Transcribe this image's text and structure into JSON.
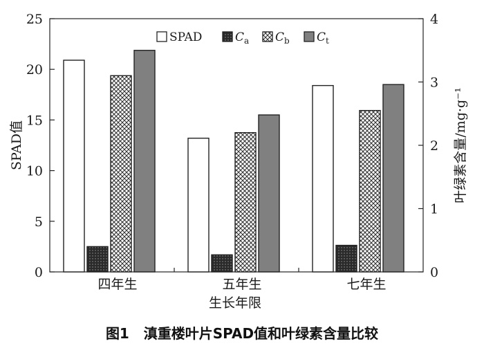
{
  "chart_data": {
    "type": "bar",
    "categories": [
      "四年生",
      "五年生",
      "七年生"
    ],
    "xlabel": "生长年限",
    "ylabel_left": "SPAD值",
    "ylabel_right": "叶绿素含量/mg·g⁻¹",
    "ylim_left": [
      0,
      25
    ],
    "ylim_right": [
      0,
      4
    ],
    "yticks_left": [
      "0",
      "5",
      "10",
      "15",
      "20",
      "25"
    ],
    "yticks_right": [
      "0",
      "1",
      "2",
      "3",
      "4"
    ],
    "legend_position": "top-right",
    "grid": false,
    "series": [
      {
        "name": "SPAD",
        "axis": "left",
        "pattern": "white",
        "values": [
          20.9,
          13.2,
          18.4
        ]
      },
      {
        "name": "Ca",
        "axis": "right",
        "pattern": "dark-dotted",
        "values": [
          0.4,
          0.27,
          0.42
        ]
      },
      {
        "name": "Cb",
        "axis": "right",
        "pattern": "crosshatch",
        "values": [
          3.1,
          2.2,
          2.55
        ]
      },
      {
        "name": "Ct",
        "axis": "right",
        "pattern": "gray",
        "values": [
          3.5,
          2.48,
          2.96
        ]
      }
    ]
  },
  "legend": {
    "spad": "SPAD",
    "ca_main": "C",
    "ca_sub": "a",
    "cb_main": "C",
    "cb_sub": "b",
    "ct_main": "C",
    "ct_sub": "t"
  },
  "caption": {
    "label": "图1",
    "text": "滇重楼叶片SPAD值和叶绿素含量比较"
  },
  "colors": {
    "bar_edge": "#222222",
    "gray_fill": "#808080",
    "dark_fill": "#2a2a2a"
  }
}
